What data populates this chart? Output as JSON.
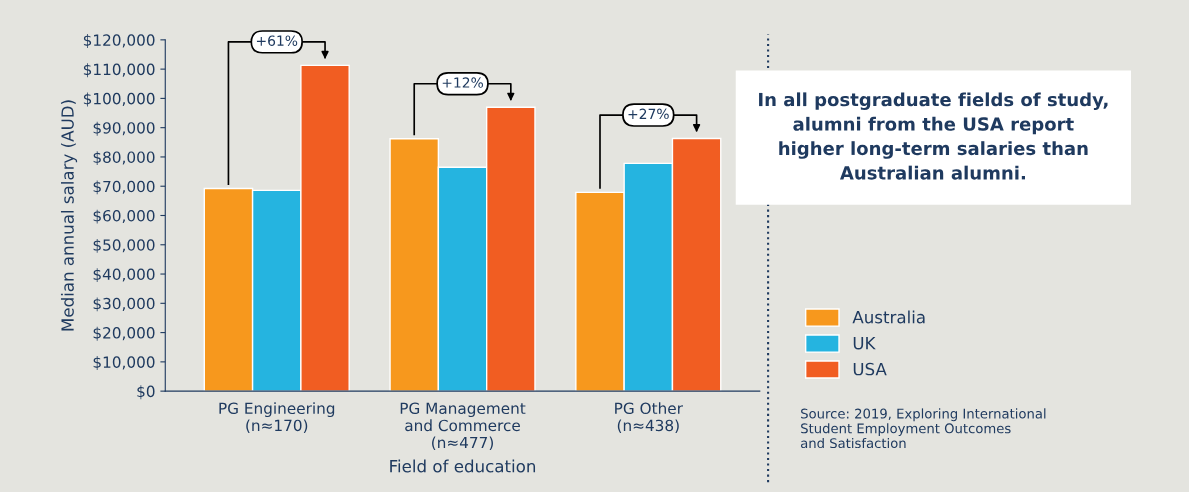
{
  "chart_data": {
    "type": "bar",
    "categories": [
      "PG Engineering\n(n≈170)",
      "PG Management\nand Commerce\n(n≈477)",
      "PG Other\n(n≈438)"
    ],
    "series": [
      {
        "name": "Australia",
        "color": "#f7981d",
        "values": [
          69200,
          86200,
          67900
        ]
      },
      {
        "name": "UK",
        "color": "#25b4e0",
        "values": [
          68600,
          76500,
          77800
        ]
      },
      {
        "name": "USA",
        "color": "#f15d22",
        "values": [
          111300,
          97000,
          86300
        ]
      }
    ],
    "xlabel": "Field of education",
    "ylabel": "Median annual salary (AUD)",
    "ylim": [
      0,
      120000
    ],
    "yticks": [
      {
        "value": 0,
        "label": "$0"
      },
      {
        "value": 10000,
        "label": "$10,000"
      },
      {
        "value": 20000,
        "label": "$20,000"
      },
      {
        "value": 30000,
        "label": "$30,000"
      },
      {
        "value": 40000,
        "label": "$40,000"
      },
      {
        "value": 50000,
        "label": "$50,000"
      },
      {
        "value": 60000,
        "label": "$60,000"
      },
      {
        "value": 70000,
        "label": "$70,000"
      },
      {
        "value": 80000,
        "label": "$80,000"
      },
      {
        "value": 90000,
        "label": "$90,000"
      },
      {
        "value": 100000,
        "label": "$100,000"
      },
      {
        "value": 110000,
        "label": "$110,000"
      },
      {
        "value": 120000,
        "label": "$120,000"
      }
    ],
    "annotations": [
      "+61%",
      "+12%",
      "+27%",
      "In all postgraduate fields of study,\nalumni from the USA report\nhigher long-term salaries than\nAustralian alumni.",
      "Source: 2019, Exploring International\nStudent Employment Outcomes\nand Satisfaction"
    ],
    "grid": false,
    "legend": "right"
  }
}
